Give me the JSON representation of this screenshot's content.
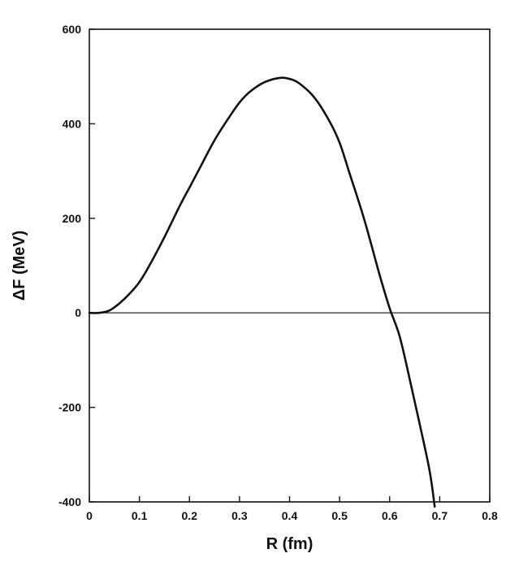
{
  "chart_data": {
    "type": "line",
    "title": "",
    "xlabel": "R (fm)",
    "ylabel": "ΔF (MeV)",
    "xlim": [
      0,
      0.8
    ],
    "ylim": [
      -400,
      600
    ],
    "x_ticks": [
      0,
      0.1,
      0.2,
      0.3,
      0.4,
      0.5,
      0.6,
      0.7,
      0.8
    ],
    "x_tick_labels": [
      "0",
      "0.1",
      "0.2",
      "0.3",
      "0.4",
      "0.5",
      "0.6",
      "0.7",
      "0.8"
    ],
    "y_ticks": [
      -400,
      -200,
      0,
      200,
      400,
      600
    ],
    "y_tick_labels": [
      "-400",
      "-200",
      "0",
      "200",
      "400",
      "600"
    ],
    "reference_line_y": 0,
    "grid": false,
    "series": [
      {
        "x": [
          0.0,
          0.02,
          0.04,
          0.06,
          0.08,
          0.1,
          0.12,
          0.15,
          0.18,
          0.2,
          0.22,
          0.25,
          0.28,
          0.3,
          0.32,
          0.35,
          0.38,
          0.4,
          0.42,
          0.45,
          0.48,
          0.5,
          0.52,
          0.55,
          0.58,
          0.6,
          0.62,
          0.64,
          0.66,
          0.68,
          0.69
        ],
        "y": [
          0,
          0,
          5,
          20,
          40,
          65,
          100,
          160,
          225,
          265,
          305,
          365,
          415,
          445,
          467,
          488,
          497,
          495,
          485,
          455,
          405,
          360,
          295,
          195,
          80,
          10,
          -50,
          -140,
          -235,
          -335,
          -410
        ]
      }
    ],
    "colors": {
      "line": "#111111",
      "axis": "#111111",
      "background": "#ffffff"
    }
  }
}
